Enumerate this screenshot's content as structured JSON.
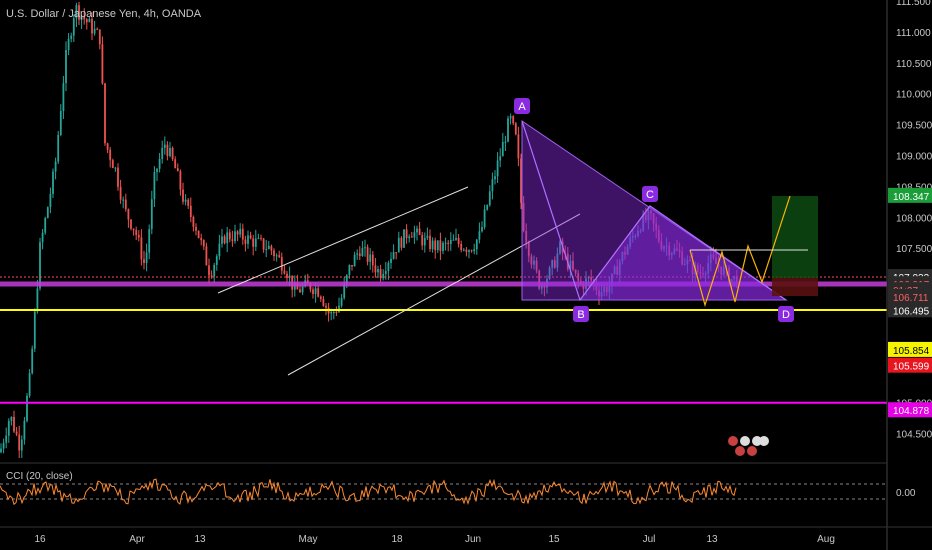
{
  "header": {
    "title": "U.S. Dollar / Japanese Yen, 4h, OANDA"
  },
  "chart_data": {
    "type": "candlestick",
    "ylim": [
      104.0,
      111.8
    ],
    "x_axis_labels": [
      "16",
      "Apr",
      "13",
      "May",
      "18",
      "Jun",
      "15",
      "Jul",
      "13",
      "Aug"
    ],
    "y_ticks": [
      "111.500",
      "111.000",
      "110.500",
      "110.000",
      "109.500",
      "109.000",
      "108.500",
      "108.000",
      "107.500",
      "107.000",
      "106.500",
      "105.000",
      "104.500"
    ],
    "price_tags": [
      {
        "label": "108.347",
        "value": 108.347,
        "color": "#1b9e3a",
        "text_color": "#ffffff"
      },
      {
        "label": "107.033",
        "value": 107.033,
        "color": "#2a2a2a",
        "text_color": "#ffffff"
      },
      {
        "label": "106.917",
        "value": 106.917,
        "color": "#2a2a2a",
        "text_color": "#ff6060"
      },
      {
        "label": "01:27",
        "value": 106.82,
        "color": "#2a2a2a",
        "text_color": "#ff6060"
      },
      {
        "label": "106.711",
        "value": 106.711,
        "color": "#2a2a2a",
        "text_color": "#ff6060"
      },
      {
        "label": "106.495",
        "value": 106.495,
        "color": "#2a2a2a",
        "text_color": "#ffffff"
      },
      {
        "label": "105.854",
        "value": 105.854,
        "color": "#f5f500",
        "text_color": "#000000"
      },
      {
        "label": "105.599",
        "value": 105.599,
        "color": "#e8141e",
        "text_color": "#ffffff"
      },
      {
        "label": "104.878",
        "value": 104.878,
        "color": "#e600e6",
        "text_color": "#ffffff"
      }
    ],
    "horizontal_lines": [
      {
        "value": 106.92,
        "color": "#c83cdc"
      },
      {
        "value": 106.5,
        "color": "#ffff00"
      },
      {
        "value": 105.0,
        "color": "#ff00ff"
      }
    ],
    "harmonic_pattern": {
      "points": [
        {
          "label": "A",
          "value": 109.6
        },
        {
          "label": "B",
          "value": 106.85
        },
        {
          "label": "C",
          "value": 108.15
        },
        {
          "label": "D",
          "value": 106.85
        }
      ],
      "color": "#8a2be2"
    },
    "cci": {
      "label": "CCI (20, close)",
      "value_label": "0.00"
    }
  },
  "colors": {
    "up": "#26a69a",
    "down": "#ef5350",
    "background": "#000000",
    "axis_text": "#c8c8c8"
  }
}
